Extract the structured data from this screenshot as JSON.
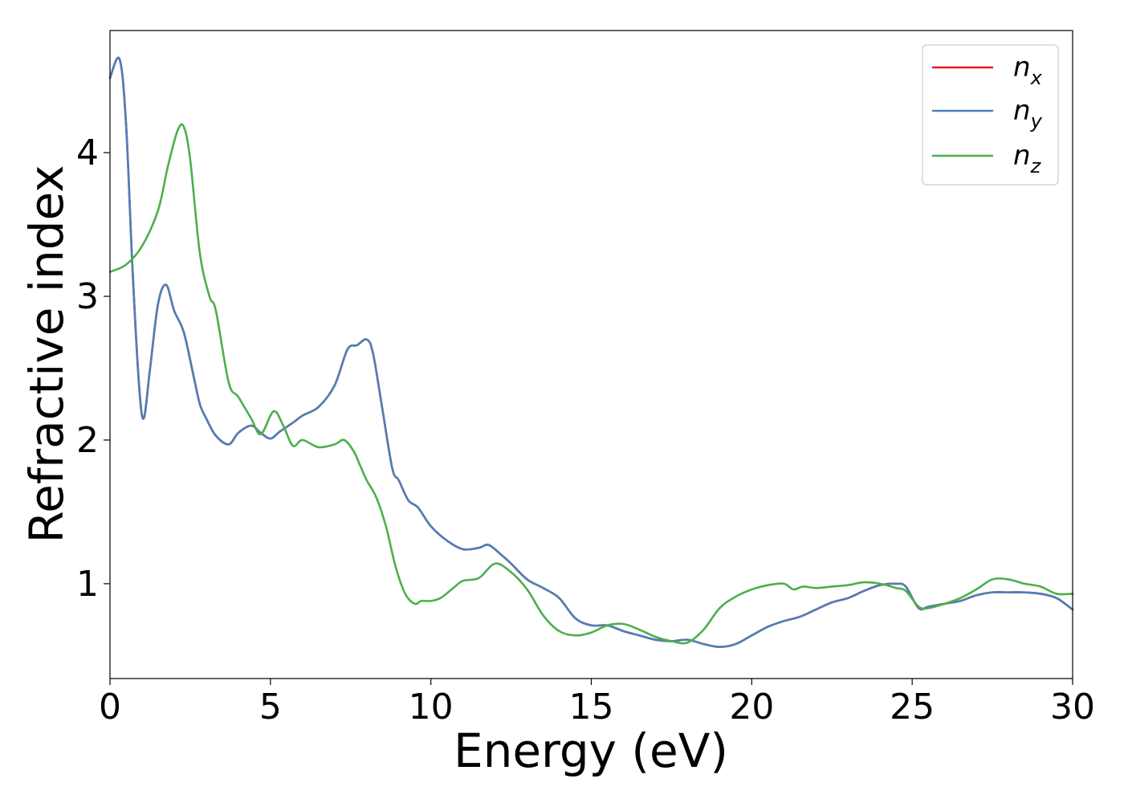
{
  "chart_data": {
    "type": "line",
    "xlabel": "Energy (eV)",
    "ylabel": "Refractive index",
    "xlim": [
      0,
      30
    ],
    "ylim": [
      0.34,
      4.85
    ],
    "xticks": [
      0,
      5,
      10,
      15,
      20,
      25,
      30
    ],
    "xtick_labels": [
      "0",
      "5",
      "10",
      "15",
      "20",
      "25",
      "30"
    ],
    "yticks": [
      1,
      2,
      3,
      4
    ],
    "ytick_labels": [
      "1",
      "2",
      "3",
      "4"
    ],
    "legend_position": "top-right",
    "grid": false,
    "series": [
      {
        "name": "n_x",
        "label_base": "n",
        "label_sub": "x",
        "color": "#e41a1c",
        "x": [
          0,
          0.3,
          0.5,
          0.7,
          0.9,
          1.05,
          1.25,
          1.5,
          1.75,
          2.0,
          2.3,
          2.6,
          2.8,
          3.0,
          3.3,
          3.7,
          4.0,
          4.4,
          4.7,
          5.0,
          5.3,
          5.7,
          6.0,
          6.5,
          7.0,
          7.4,
          7.7,
          8.0,
          8.2,
          8.5,
          8.8,
          9.0,
          9.3,
          9.6,
          10.0,
          10.5,
          11.0,
          11.5,
          11.8,
          12.2,
          12.5,
          13.0,
          13.5,
          14.0,
          14.5,
          15.0,
          15.5,
          16.0,
          16.5,
          17.0,
          17.5,
          18.0,
          18.5,
          19.0,
          19.5,
          20.0,
          20.5,
          21.0,
          21.5,
          22.0,
          22.5,
          23.0,
          23.5,
          24.0,
          24.5,
          24.8,
          25.2,
          25.5,
          26.0,
          26.5,
          27.0,
          27.5,
          28.0,
          28.5,
          29.0,
          29.5,
          30.0
        ],
        "y": [
          4.52,
          4.65,
          4.2,
          3.2,
          2.4,
          2.15,
          2.5,
          2.95,
          3.08,
          2.9,
          2.75,
          2.45,
          2.25,
          2.15,
          2.03,
          1.97,
          2.05,
          2.1,
          2.05,
          2.01,
          2.06,
          2.12,
          2.17,
          2.23,
          2.38,
          2.63,
          2.66,
          2.7,
          2.6,
          2.2,
          1.8,
          1.72,
          1.58,
          1.53,
          1.4,
          1.3,
          1.24,
          1.25,
          1.27,
          1.2,
          1.14,
          1.03,
          0.97,
          0.9,
          0.76,
          0.71,
          0.71,
          0.67,
          0.64,
          0.61,
          0.6,
          0.61,
          0.58,
          0.56,
          0.58,
          0.64,
          0.7,
          0.74,
          0.77,
          0.82,
          0.87,
          0.9,
          0.95,
          0.99,
          1.0,
          0.98,
          0.83,
          0.84,
          0.86,
          0.88,
          0.92,
          0.94,
          0.94,
          0.94,
          0.93,
          0.9,
          0.82
        ]
      },
      {
        "name": "n_y",
        "label_base": "n",
        "label_sub": "y",
        "color": "#4e7fb8",
        "x": [
          0,
          0.3,
          0.5,
          0.7,
          0.9,
          1.05,
          1.25,
          1.5,
          1.75,
          2.0,
          2.3,
          2.6,
          2.8,
          3.0,
          3.3,
          3.7,
          4.0,
          4.4,
          4.7,
          5.0,
          5.3,
          5.7,
          6.0,
          6.5,
          7.0,
          7.4,
          7.7,
          8.0,
          8.2,
          8.5,
          8.8,
          9.0,
          9.3,
          9.6,
          10.0,
          10.5,
          11.0,
          11.5,
          11.8,
          12.2,
          12.5,
          13.0,
          13.5,
          14.0,
          14.5,
          15.0,
          15.5,
          16.0,
          16.5,
          17.0,
          17.5,
          18.0,
          18.5,
          19.0,
          19.5,
          20.0,
          20.5,
          21.0,
          21.5,
          22.0,
          22.5,
          23.0,
          23.5,
          24.0,
          24.5,
          24.8,
          25.2,
          25.5,
          26.0,
          26.5,
          27.0,
          27.5,
          28.0,
          28.5,
          29.0,
          29.5,
          30.0
        ],
        "y": [
          4.52,
          4.65,
          4.2,
          3.2,
          2.4,
          2.15,
          2.5,
          2.95,
          3.08,
          2.9,
          2.75,
          2.45,
          2.25,
          2.15,
          2.03,
          1.97,
          2.05,
          2.1,
          2.05,
          2.01,
          2.06,
          2.12,
          2.17,
          2.23,
          2.38,
          2.63,
          2.66,
          2.7,
          2.6,
          2.2,
          1.8,
          1.72,
          1.58,
          1.53,
          1.4,
          1.3,
          1.24,
          1.25,
          1.27,
          1.2,
          1.14,
          1.03,
          0.97,
          0.9,
          0.76,
          0.71,
          0.71,
          0.67,
          0.64,
          0.61,
          0.6,
          0.61,
          0.58,
          0.56,
          0.58,
          0.64,
          0.7,
          0.74,
          0.77,
          0.82,
          0.87,
          0.9,
          0.95,
          0.99,
          1.0,
          0.98,
          0.83,
          0.84,
          0.86,
          0.88,
          0.92,
          0.94,
          0.94,
          0.94,
          0.93,
          0.9,
          0.82
        ]
      },
      {
        "name": "n_z",
        "label_base": "n",
        "label_sub": "z",
        "color": "#4daf4a",
        "x": [
          0,
          0.5,
          1.0,
          1.5,
          1.8,
          2.1,
          2.3,
          2.5,
          2.8,
          3.1,
          3.3,
          3.7,
          4.0,
          4.4,
          4.7,
          5.1,
          5.4,
          5.7,
          6.0,
          6.5,
          7.0,
          7.3,
          7.6,
          7.8,
          8.0,
          8.3,
          8.6,
          8.9,
          9.2,
          9.5,
          9.7,
          10.0,
          10.3,
          10.7,
          11.0,
          11.5,
          12.0,
          12.5,
          13.0,
          13.5,
          14.0,
          14.5,
          15.0,
          15.5,
          16.0,
          16.5,
          17.0,
          17.5,
          18.0,
          18.5,
          19.0,
          19.5,
          20.0,
          20.5,
          21.0,
          21.3,
          21.6,
          22.0,
          22.5,
          23.0,
          23.5,
          24.0,
          24.5,
          24.8,
          25.2,
          25.5,
          26.0,
          26.5,
          27.0,
          27.5,
          28.0,
          28.5,
          29.0,
          29.5,
          30.0
        ],
        "y": [
          3.17,
          3.22,
          3.35,
          3.6,
          3.9,
          4.15,
          4.18,
          3.95,
          3.3,
          3.0,
          2.9,
          2.4,
          2.3,
          2.15,
          2.04,
          2.2,
          2.1,
          1.96,
          2.0,
          1.95,
          1.97,
          2.0,
          1.92,
          1.82,
          1.72,
          1.6,
          1.4,
          1.12,
          0.93,
          0.86,
          0.88,
          0.88,
          0.9,
          0.97,
          1.02,
          1.04,
          1.14,
          1.08,
          0.96,
          0.78,
          0.67,
          0.64,
          0.66,
          0.71,
          0.72,
          0.68,
          0.63,
          0.6,
          0.59,
          0.68,
          0.83,
          0.91,
          0.96,
          0.99,
          1.0,
          0.96,
          0.98,
          0.97,
          0.98,
          0.99,
          1.01,
          1.0,
          0.97,
          0.95,
          0.84,
          0.83,
          0.86,
          0.9,
          0.96,
          1.03,
          1.03,
          1.0,
          0.98,
          0.93,
          0.93
        ]
      }
    ]
  }
}
